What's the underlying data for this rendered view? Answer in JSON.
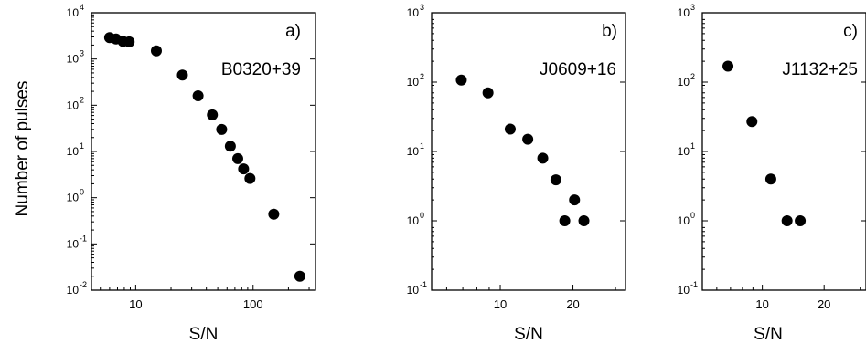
{
  "figure": {
    "shared_ylabel": "Number of pulses"
  },
  "chart_data": [
    {
      "type": "scatter",
      "panel_label": "a)",
      "title": "B0320+39",
      "xlabel": "S/N",
      "x_scale": "log",
      "y_scale": "log",
      "xlim": [
        4.2,
        340
      ],
      "ylim": [
        0.01,
        10000
      ],
      "x_ticks": [
        10,
        100
      ],
      "x_tick_labels": [
        "10",
        "100"
      ],
      "y_ticks": [
        0.01,
        0.1,
        1,
        10,
        100,
        1000,
        10000
      ],
      "y_tick_labels": [
        [
          "10",
          "-2"
        ],
        [
          "10",
          "-1"
        ],
        [
          "10",
          "0"
        ],
        [
          "10",
          "1"
        ],
        [
          "10",
          "2"
        ],
        [
          "10",
          "3"
        ],
        [
          "10",
          "4"
        ]
      ],
      "grid": false,
      "points": [
        {
          "x": 6,
          "y": 2900
        },
        {
          "x": 6.8,
          "y": 2700
        },
        {
          "x": 7.8,
          "y": 2400
        },
        {
          "x": 8.8,
          "y": 2350
        },
        {
          "x": 15,
          "y": 1500
        },
        {
          "x": 25,
          "y": 450
        },
        {
          "x": 34,
          "y": 160
        },
        {
          "x": 45,
          "y": 62
        },
        {
          "x": 54,
          "y": 30
        },
        {
          "x": 64,
          "y": 13
        },
        {
          "x": 74,
          "y": 7
        },
        {
          "x": 83,
          "y": 4.2
        },
        {
          "x": 94,
          "y": 2.6
        },
        {
          "x": 150,
          "y": 0.44
        },
        {
          "x": 250,
          "y": 0.02
        }
      ]
    },
    {
      "type": "scatter",
      "panel_label": "b)",
      "title": "J0609+16",
      "xlabel": "S/N",
      "x_scale": "log",
      "y_scale": "log",
      "xlim": [
        5.2,
        33
      ],
      "ylim": [
        0.1,
        1000
      ],
      "x_ticks": [
        10,
        20
      ],
      "x_tick_labels": [
        "10",
        "20"
      ],
      "y_ticks": [
        0.1,
        1,
        10,
        100,
        1000
      ],
      "y_tick_labels": [
        [
          "10",
          "-1"
        ],
        [
          "10",
          "0"
        ],
        [
          "10",
          "1"
        ],
        [
          "10",
          "2"
        ],
        [
          "10",
          "3"
        ]
      ],
      "grid": false,
      "points": [
        {
          "x": 6.9,
          "y": 107
        },
        {
          "x": 8.9,
          "y": 70
        },
        {
          "x": 11,
          "y": 21
        },
        {
          "x": 13,
          "y": 15
        },
        {
          "x": 15,
          "y": 8
        },
        {
          "x": 17,
          "y": 3.9
        },
        {
          "x": 18.5,
          "y": 1
        },
        {
          "x": 20.3,
          "y": 2
        },
        {
          "x": 22.2,
          "y": 1
        }
      ]
    },
    {
      "type": "scatter",
      "panel_label": "c)",
      "title": "J1132+25",
      "xlabel": "S/N",
      "x_scale": "log",
      "y_scale": "log",
      "xlim": [
        5.1,
        32
      ],
      "ylim": [
        0.1,
        1000
      ],
      "x_ticks": [
        10,
        20
      ],
      "x_tick_labels": [
        "10",
        "20"
      ],
      "y_ticks": [
        0.1,
        1,
        10,
        100,
        1000
      ],
      "y_tick_labels": [
        [
          "10",
          "-1"
        ],
        [
          "10",
          "0"
        ],
        [
          "10",
          "1"
        ],
        [
          "10",
          "2"
        ],
        [
          "10",
          "3"
        ]
      ],
      "grid": false,
      "points": [
        {
          "x": 6.8,
          "y": 170
        },
        {
          "x": 8.9,
          "y": 27
        },
        {
          "x": 11,
          "y": 4
        },
        {
          "x": 13.2,
          "y": 1
        },
        {
          "x": 15.3,
          "y": 1
        }
      ]
    }
  ]
}
